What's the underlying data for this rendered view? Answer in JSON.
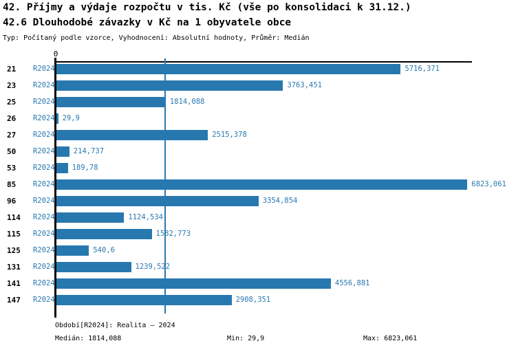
{
  "header": {
    "title": "42. Příjmy a výdaje rozpočtu v tis. Kč (vše po konsolidaci k 31.12.)",
    "subtitle": "42.6 Dlouhodobé závazky v Kč na 1 obyvatele obce",
    "meta": "Typ: Počítaný podle vzorce, Vyhodnocení: Absolutní hodnoty, Průměr: Medián"
  },
  "chart_data": {
    "type": "bar",
    "orientation": "horizontal",
    "title": "42. Příjmy a výdaje rozpočtu v tis. Kč (vše po konsolidaci k 31.12.)",
    "subtitle": "42.6 Dlouhodobé závazky v Kč na 1 obyvatele obce",
    "meta": "Typ: Počítaný podle vzorce, Vyhodnocení: Absolutní hodnoty, Průměr: Medián",
    "series_label": "R2024",
    "zero_label": "0",
    "categories": [
      "21",
      "23",
      "25",
      "26",
      "27",
      "50",
      "53",
      "85",
      "96",
      "114",
      "115",
      "125",
      "131",
      "141",
      "147"
    ],
    "values": [
      5716.371,
      3763.451,
      1814.088,
      29.9,
      2515.378,
      214.737,
      189.78,
      6823.061,
      3354.854,
      1124.534,
      1582.773,
      540.6,
      1239.522,
      4556.881,
      2908.351
    ],
    "value_labels": [
      "5716,371",
      "3763,451",
      "1814,088",
      "29,9",
      "2515,378",
      "214,737",
      "189,78",
      "6823,061",
      "3354,854",
      "1124,534",
      "1582,773",
      "540,6",
      "1239,522",
      "4556,881",
      "2908,351"
    ],
    "median": 1814.088,
    "min": 29.9,
    "max": 6823.061,
    "xlim": [
      0,
      6900
    ],
    "grid": false,
    "legend": "none",
    "bar_color": "#2878b0",
    "median_line_color": "#2878b0",
    "label_color": "#2878b0",
    "axis_color": "#000000"
  },
  "footer": {
    "period": "Období[R2024]: Realita – 2024",
    "median": "Medián: 1814,088",
    "min": "Min: 29,9",
    "max": "Max: 6823,061"
  }
}
